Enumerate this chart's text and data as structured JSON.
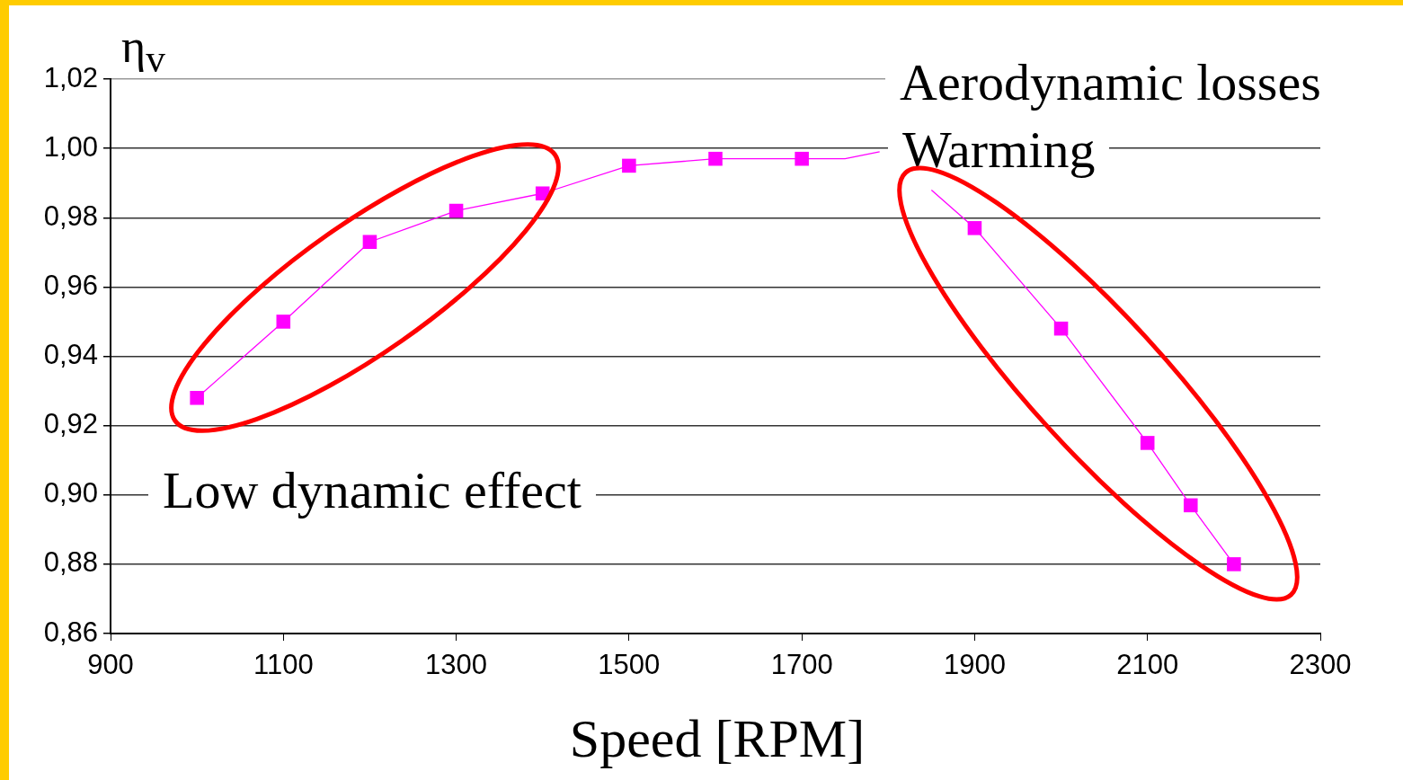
{
  "chart_data": {
    "type": "line",
    "xlabel": "Speed [RPM]",
    "ylabel": "η$_{v}$",
    "xlim": [
      900,
      2300
    ],
    "xticks": [
      900,
      1100,
      1300,
      1500,
      1700,
      1900,
      2100,
      2300
    ],
    "ylim": [
      0.86,
      1.02
    ],
    "yticks": [
      {
        "value": 0.86,
        "label": "0,86"
      },
      {
        "value": 0.88,
        "label": "0,88"
      },
      {
        "value": 0.9,
        "label": "0,90"
      },
      {
        "value": 0.92,
        "label": "0,92"
      },
      {
        "value": 0.94,
        "label": "0,94"
      },
      {
        "value": 0.96,
        "label": "0,96"
      },
      {
        "value": 0.98,
        "label": "0,98"
      },
      {
        "value": 1.0,
        "label": "1,00"
      },
      {
        "value": 1.02,
        "label": "1,02"
      }
    ],
    "grid": "y",
    "legend": false,
    "line_style": "solid",
    "series": [
      {
        "marker": "square",
        "color": "#ff00ff",
        "x": [
          1000,
          1100,
          1200,
          1300,
          1400,
          1500,
          1600,
          1700,
          1800,
          1900,
          2000,
          2100,
          2150,
          2200
        ],
        "values": [
          0.928,
          0.95,
          0.973,
          0.982,
          0.987,
          0.995,
          0.997,
          0.997,
          null,
          0.977,
          0.948,
          0.915,
          0.897,
          0.88
        ]
      },
      {
        "marker": "none",
        "color": "#ff00ff",
        "x": [
          1700,
          1750,
          1790,
          1820,
          1850,
          1900
        ],
        "values": [
          0.997,
          0.997,
          0.999,
          null,
          0.988,
          0.977
        ]
      }
    ],
    "annotations": [
      "Aerodynamic losses",
      "Warming",
      "Low dynamic effect"
    ]
  }
}
